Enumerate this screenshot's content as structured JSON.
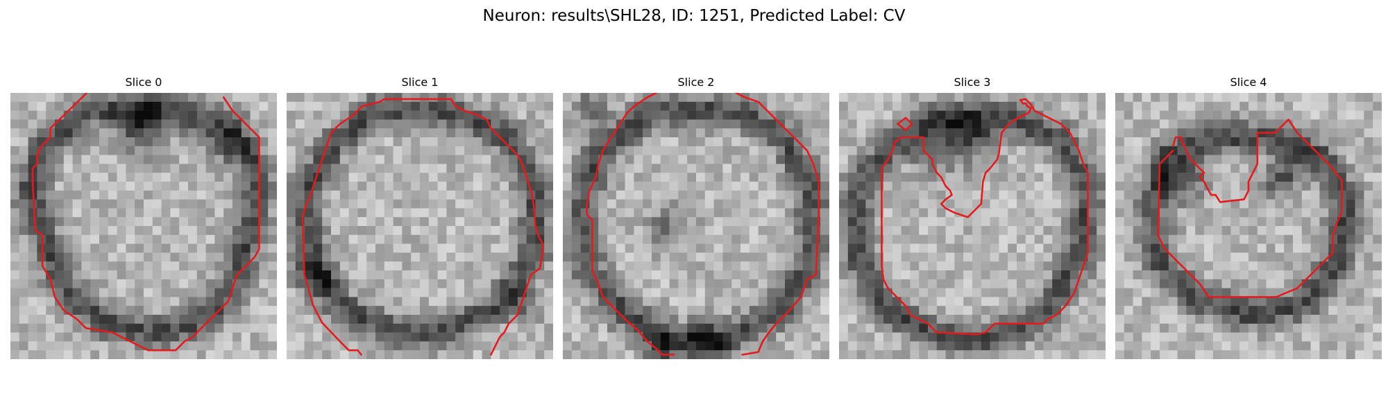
{
  "figure": {
    "title": "Neuron: results\\SHL28, ID: 1251, Predicted Label: CV",
    "contour_color": "#e41a1c"
  },
  "panels": [
    {
      "title": "Slice 0"
    },
    {
      "title": "Slice 1"
    },
    {
      "title": "Slice 2"
    },
    {
      "title": "Slice 3"
    },
    {
      "title": "Slice 4"
    }
  ]
}
